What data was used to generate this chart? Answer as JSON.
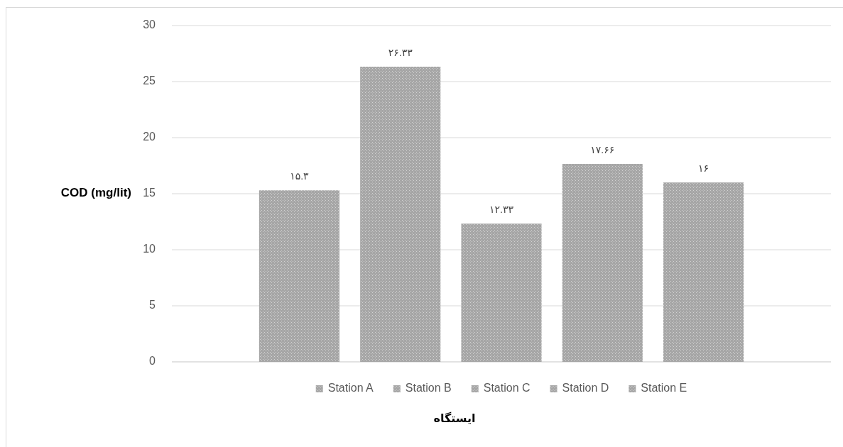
{
  "chart_data": {
    "type": "bar",
    "categories": [
      null
    ],
    "series": [
      {
        "name": "Station A",
        "color": "#a6a6a6",
        "values": [
          15.3
        ],
        "value_labels": [
          "۱۵.۳"
        ]
      },
      {
        "name": "Station B",
        "color": "#a6a6a6",
        "values": [
          26.33
        ],
        "value_labels": [
          "۲۶.۳۳"
        ]
      },
      {
        "name": "Station C",
        "color": "#a6a6a6",
        "values": [
          12.33
        ],
        "value_labels": [
          "۱۲.۳۳"
        ]
      },
      {
        "name": "Station D",
        "color": "#a6a6a6",
        "values": [
          17.66
        ],
        "value_labels": [
          "۱۷.۶۶"
        ]
      },
      {
        "name": "Station E",
        "color": "#a6a6a6",
        "values": [
          16
        ],
        "value_labels": [
          "۱۶"
        ]
      }
    ],
    "ylim": [
      0,
      30
    ],
    "yticks": [
      0,
      5,
      10,
      15,
      20,
      25,
      30
    ],
    "ylabel": "COD (mg/lit)",
    "xlabel": "ایستگاه",
    "grid": "y",
    "legend": "bottom"
  }
}
